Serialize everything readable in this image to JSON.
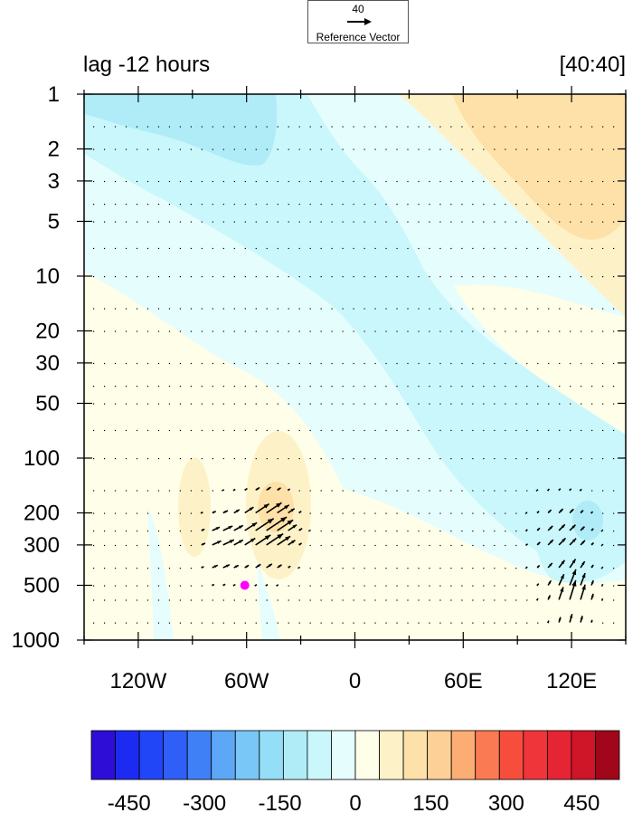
{
  "reference_vector": {
    "magnitude_label": "40",
    "caption": "Reference Vector"
  },
  "titles": {
    "left": "lag -12 hours",
    "right": "[40:40]"
  },
  "chart_data": {
    "type": "heatmap",
    "subtype": "longitude-pressure contour with vectors",
    "x_axis": {
      "range": [
        -150,
        150
      ],
      "ticks": [
        -120,
        -60,
        0,
        60,
        120
      ],
      "tick_labels": [
        "120W",
        "60W",
        "0",
        "60E",
        "120E"
      ]
    },
    "y_axis": {
      "scale": "log",
      "reversed": true,
      "range": [
        1000,
        1
      ],
      "ticks": [
        1,
        2,
        3,
        5,
        10,
        20,
        30,
        50,
        100,
        200,
        300,
        500,
        1000
      ],
      "tick_labels": [
        "1",
        "2",
        "3",
        "5",
        "10",
        "20",
        "30",
        "50",
        "100",
        "200",
        "300",
        "500",
        "1000"
      ]
    },
    "colorbar": {
      "levels": [
        -525,
        -475,
        -425,
        -375,
        -325,
        -275,
        -225,
        -175,
        -125,
        -75,
        -25,
        25,
        75,
        125,
        175,
        225,
        275,
        325,
        375,
        425,
        475,
        525
      ],
      "tick_values": [
        -450,
        -300,
        -150,
        0,
        150,
        300,
        450
      ],
      "tick_labels": [
        "-450",
        "-300",
        "-150",
        "0",
        "150",
        "300",
        "450"
      ],
      "colors": [
        "#2e0ed6",
        "#1d2bf2",
        "#2046f7",
        "#2f5ff7",
        "#3f80f7",
        "#5da7f7",
        "#79c7f7",
        "#95def8",
        "#afecf8",
        "#caf7fb",
        "#e6fdfd",
        "#fffee8",
        "#fdf2c7",
        "#fde1a8",
        "#fcd096",
        "#fbad74",
        "#f97a53",
        "#f64d3c",
        "#f0353a",
        "#e52434",
        "#cf1528",
        "#a1061b"
      ]
    },
    "field_features": [
      {
        "type": "negative",
        "level_color": "#caf7fb",
        "desc": "band of negative values running diagonally from upper-left (120W, 1 hPa) to lower-right (150E, 500 hPa)"
      },
      {
        "type": "negative",
        "level_color": "#afecf8",
        "desc": "stronger negative core near 130W-60W at 1-2 hPa"
      },
      {
        "type": "positive",
        "level_color": "#fde1a8",
        "desc": "positive maximum near 60E-150E at 1-5 hPa"
      },
      {
        "type": "positive",
        "level_color": "#fdf2c7",
        "desc": "positive lobes near 90W and 50W at 100-400 hPa"
      },
      {
        "type": "negative",
        "level_color": "#afecf8",
        "desc": "negative core near 125E at 200-300 hPa"
      }
    ],
    "marker": {
      "lon": -61,
      "pressure": 500,
      "color": "#ff00ff"
    }
  }
}
